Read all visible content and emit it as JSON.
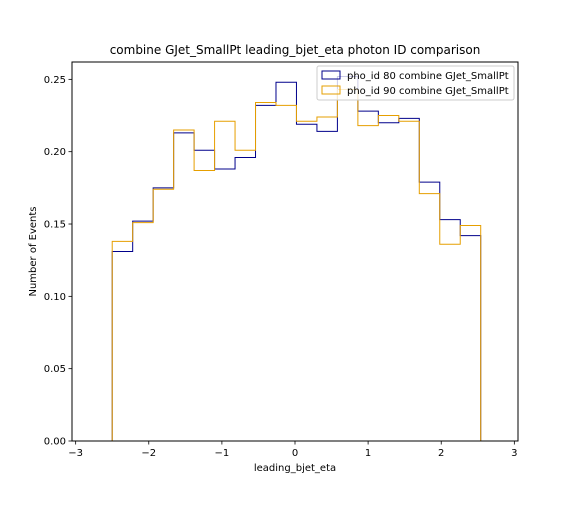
{
  "chart_data": {
    "type": "line",
    "drawstyle": "step-histogram",
    "title": "combine GJet_SmallPt leading_bjet_eta photon ID comparison",
    "xlabel": "leading_bjet_eta",
    "ylabel": "Number of Events",
    "xlim": [
      -3.05,
      3.05
    ],
    "ylim": [
      0.0,
      0.262
    ],
    "x_ticks": [
      -3,
      -2,
      -1,
      0,
      1,
      2,
      3
    ],
    "x_tick_labels": [
      "−3",
      "−2",
      "−1",
      "0",
      "1",
      "2",
      "3"
    ],
    "y_ticks": [
      0.0,
      0.05,
      0.1,
      0.15,
      0.2,
      0.25
    ],
    "y_tick_labels": [
      "0.00",
      "0.05",
      "0.10",
      "0.15",
      "0.20",
      "0.25"
    ],
    "grid": false,
    "legend_position": "upper right",
    "bin_edges": [
      -2.5,
      -2.22,
      -1.94,
      -1.66,
      -1.38,
      -1.1,
      -0.82,
      -0.54,
      -0.26,
      0.02,
      0.3,
      0.58,
      0.86,
      1.14,
      1.42,
      1.7,
      1.98,
      2.26,
      2.54
    ],
    "series": [
      {
        "name": "pho_id 80 combine GJet_SmallPt",
        "color": "#00008b",
        "values": [
          0.131,
          0.152,
          0.175,
          0.213,
          0.201,
          0.188,
          0.196,
          0.232,
          0.248,
          0.219,
          0.214,
          0.252,
          0.228,
          0.22,
          0.223,
          0.179,
          0.153,
          0.142
        ]
      },
      {
        "name": "pho_id 90 combine GJet_SmallPt",
        "color": "#e69f00",
        "values": [
          0.138,
          0.151,
          0.174,
          0.215,
          0.187,
          0.221,
          0.201,
          0.234,
          0.232,
          0.221,
          0.224,
          0.243,
          0.218,
          0.225,
          0.221,
          0.171,
          0.136,
          0.149
        ]
      }
    ]
  }
}
